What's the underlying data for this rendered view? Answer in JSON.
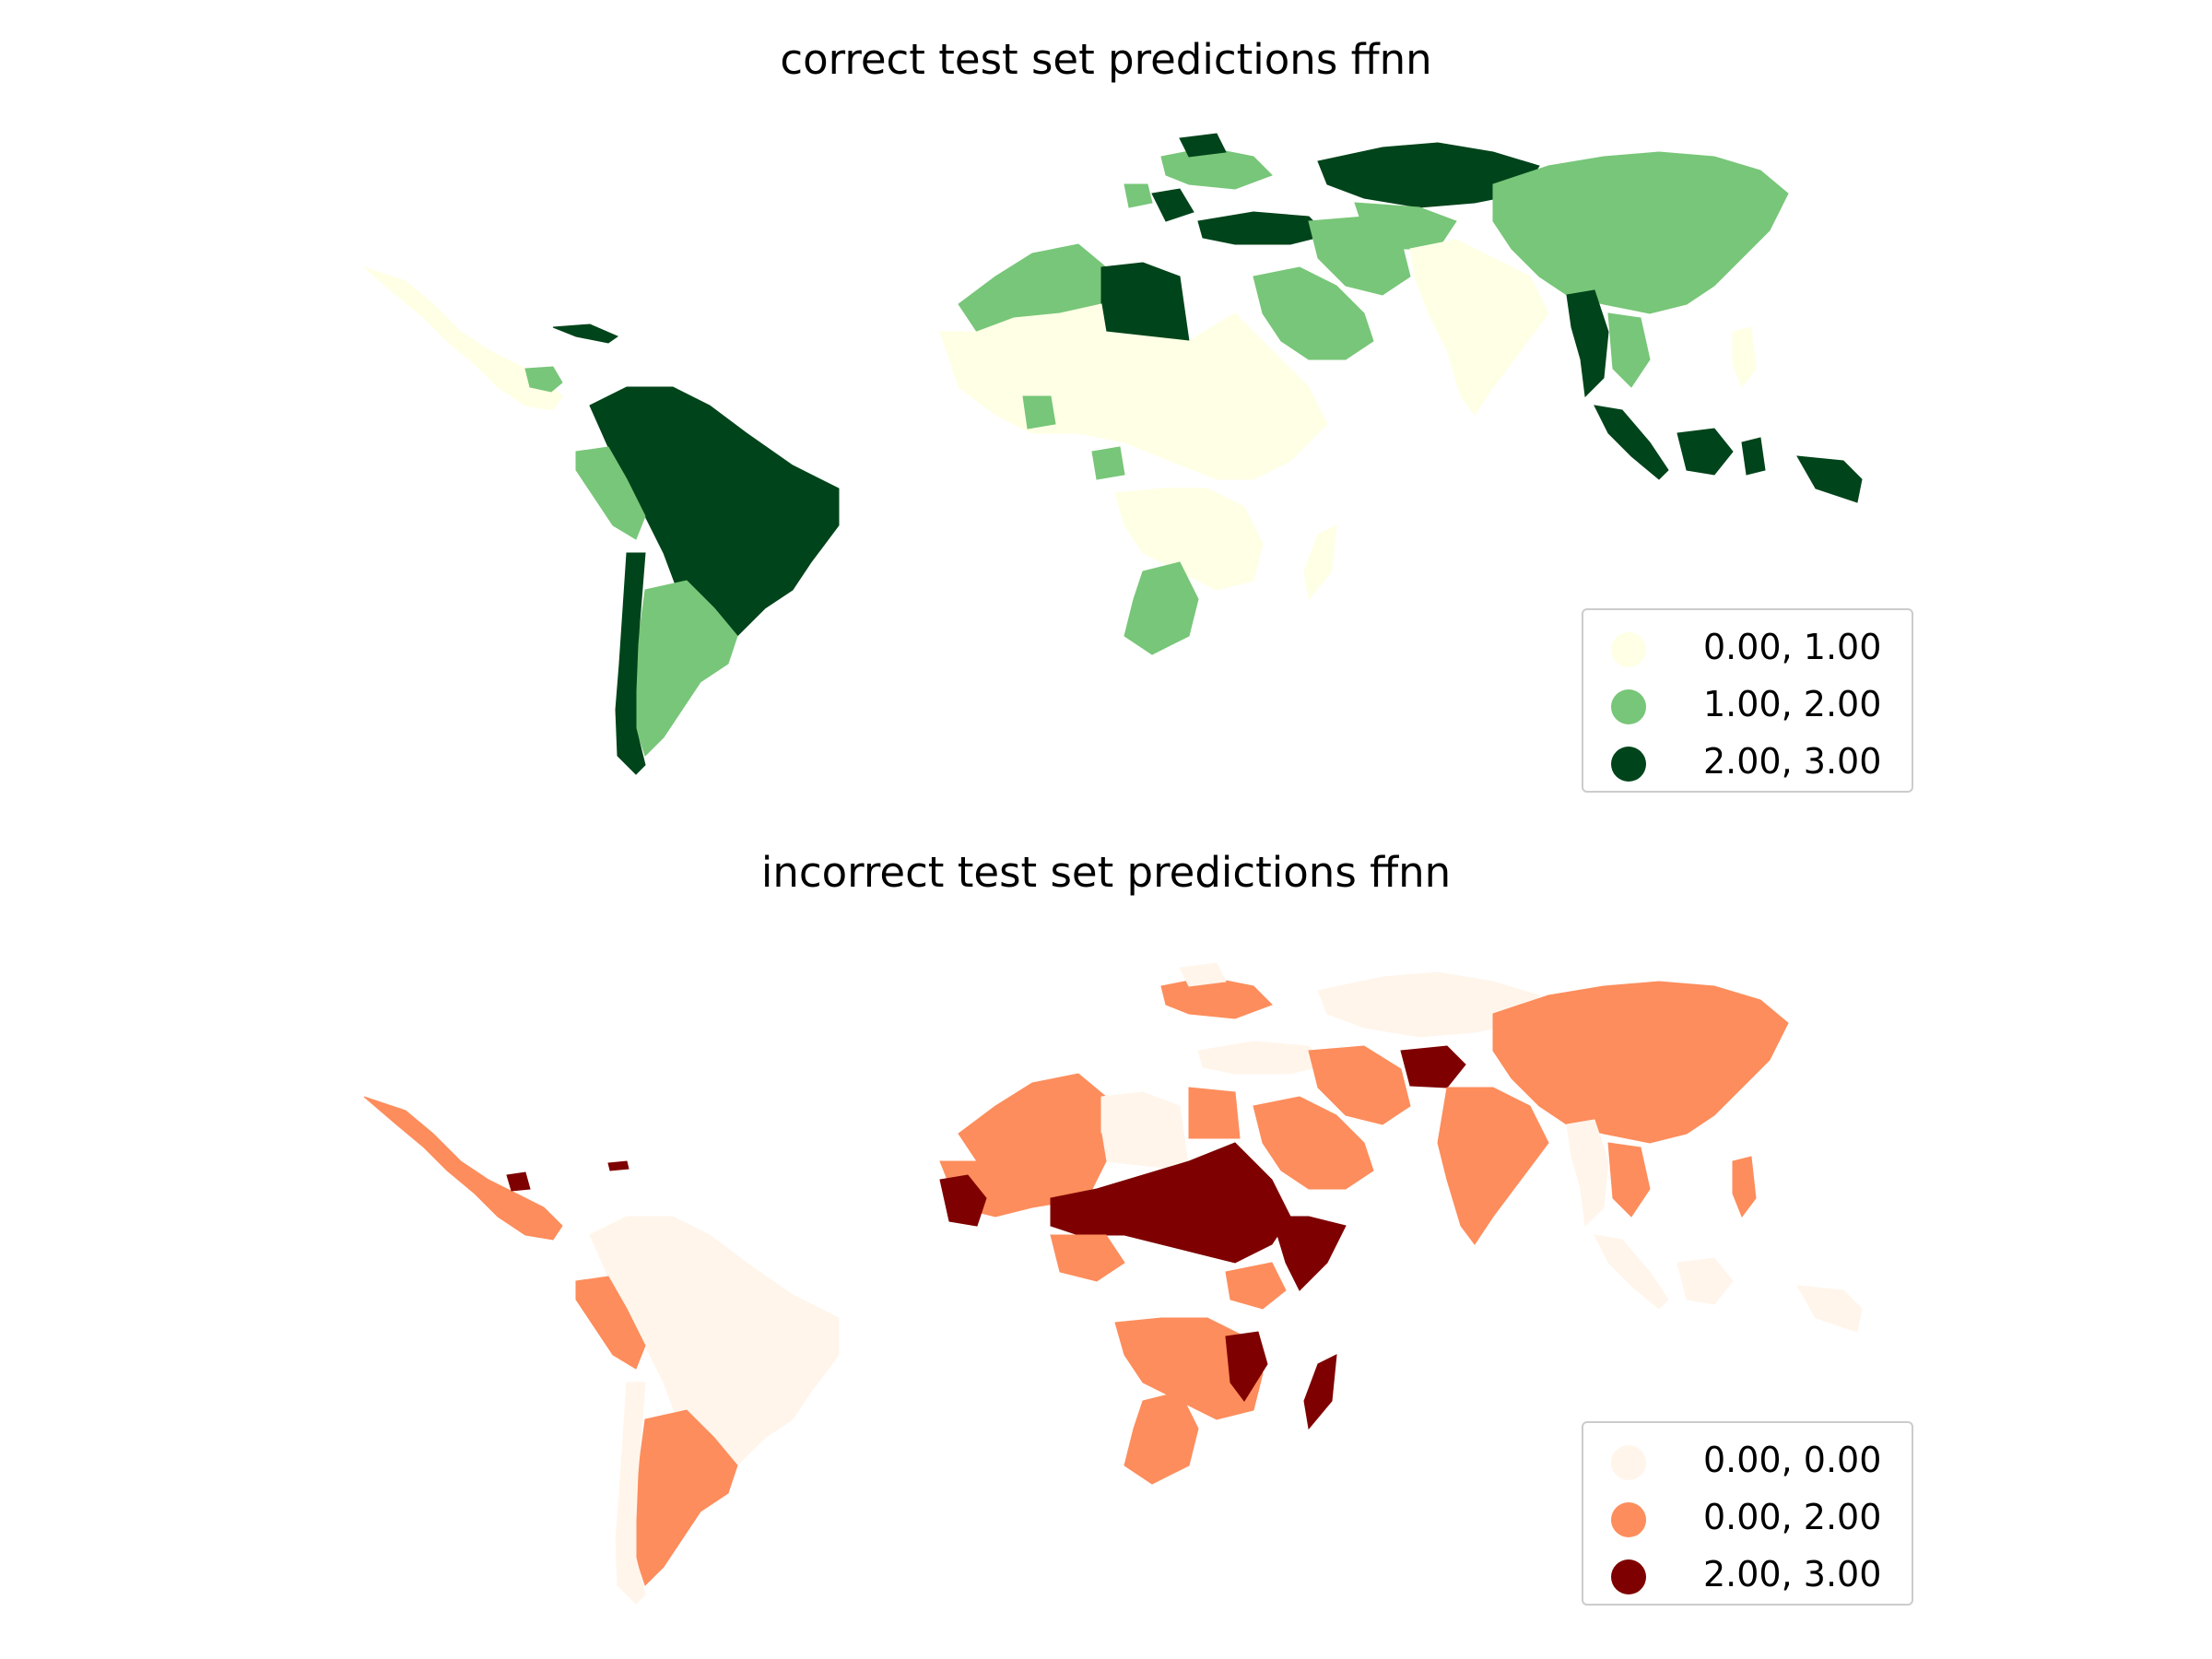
{
  "figure": {
    "maps": [
      {
        "title": "correct test set predictions ffnn",
        "legend": [
          {
            "label": "0.00, 1.00",
            "color": "#ffffe5"
          },
          {
            "label": "1.00, 2.00",
            "color": "#78c679"
          },
          {
            "label": "2.00, 3.00",
            "color": "#00441b"
          }
        ]
      },
      {
        "title": "incorrect test set predictions ffnn",
        "legend": [
          {
            "label": "0.00, 0.00",
            "color": "#fff5eb"
          },
          {
            "label": "0.00, 2.00",
            "color": "#fd8d5c"
          },
          {
            "label": "2.00, 3.00",
            "color": "#7f0000"
          }
        ]
      }
    ]
  },
  "colors": {
    "green_light": "#ffffe5",
    "green_mid": "#78c679",
    "green_dark": "#00441b",
    "orange_light": "#fff5eb",
    "orange_mid": "#fd8d5c",
    "orange_dark": "#7f0000",
    "legend_border": "#cccccc"
  }
}
